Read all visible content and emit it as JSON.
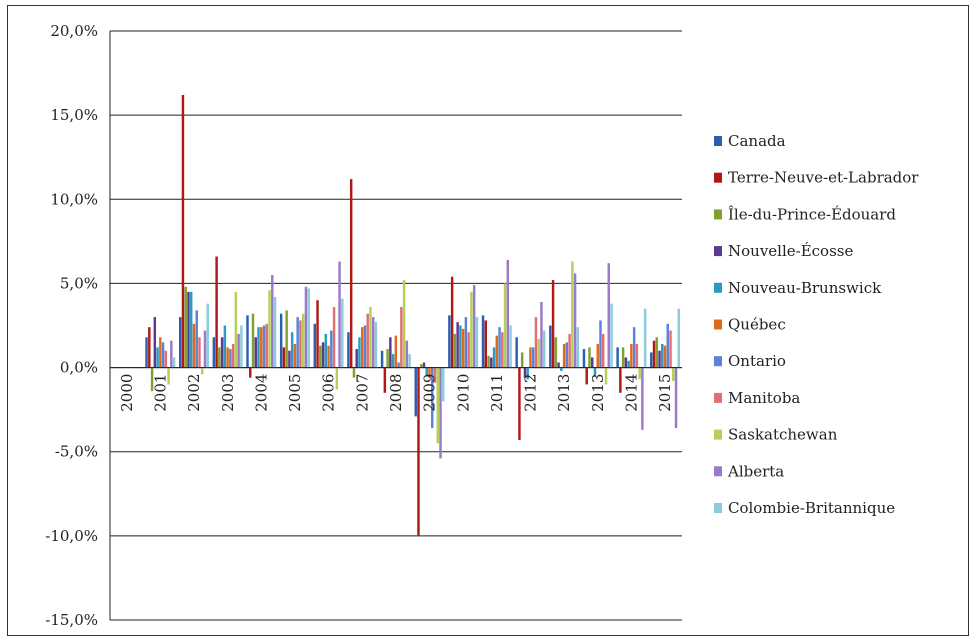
{
  "chart_data": {
    "type": "bar",
    "title": "",
    "xlabel": "",
    "ylabel": "",
    "ylim": [
      -15,
      20
    ],
    "yticks": [
      20,
      15,
      10,
      5,
      0,
      -5,
      -10,
      -15
    ],
    "ytick_labels": [
      "20,0%",
      "15,0%",
      "10,0%",
      "5,0%",
      "0,0%",
      "-5,0%",
      "-10,0%",
      "-15,0%"
    ],
    "grid": "horizontal",
    "legend_position": "right",
    "categories": [
      "2000",
      "2001",
      "2002",
      "2003",
      "2004",
      "2005",
      "2006",
      "2007",
      "2008",
      "2009",
      "2010",
      "2011",
      "2012",
      "2013",
      "2013",
      "2014",
      "2015"
    ],
    "series": [
      {
        "name": "Canada",
        "color": "#2a5fb0",
        "values": [
          null,
          1.8,
          3.0,
          1.8,
          3.1,
          3.2,
          2.6,
          2.1,
          1.0,
          -2.9,
          3.1,
          3.1,
          1.8,
          2.5,
          1.1,
          1.2,
          0.9
        ]
      },
      {
        "name": "Terre-Neuve-et-Labrador",
        "color": "#b01818",
        "values": [
          null,
          2.4,
          16.2,
          6.6,
          -0.6,
          1.2,
          4.0,
          11.2,
          -1.5,
          -10.0,
          5.4,
          2.8,
          -4.3,
          5.2,
          -1.0,
          -1.5,
          1.6
        ]
      },
      {
        "name": "Île-du-Prince-Édouard",
        "color": "#80a030",
        "values": [
          null,
          -1.4,
          4.8,
          1.2,
          3.2,
          3.4,
          1.3,
          -0.6,
          1.1,
          0.2,
          2.0,
          0.7,
          0.9,
          1.8,
          1.2,
          1.2,
          1.8
        ]
      },
      {
        "name": "Nouvelle-Écosse",
        "color": "#5a3a90",
        "values": [
          null,
          3.0,
          4.5,
          1.8,
          1.8,
          1.0,
          1.5,
          1.1,
          1.8,
          0.3,
          2.7,
          0.6,
          -0.6,
          0.3,
          0.6,
          0.6,
          1.0
        ]
      },
      {
        "name": "Nouveau-Brunswick",
        "color": "#2a9ac0",
        "values": [
          null,
          1.2,
          4.5,
          2.5,
          2.4,
          2.1,
          2.0,
          1.8,
          0.8,
          -0.5,
          2.5,
          1.2,
          -0.7,
          -0.2,
          -0.5,
          0.4,
          1.4
        ]
      },
      {
        "name": "Québec",
        "color": "#e06a1a",
        "values": [
          null,
          1.8,
          2.6,
          1.2,
          2.4,
          1.4,
          1.3,
          2.4,
          1.9,
          -0.6,
          2.3,
          1.9,
          1.2,
          1.4,
          1.4,
          1.4,
          1.3
        ]
      },
      {
        "name": "Ontario",
        "color": "#5a82d8",
        "values": [
          null,
          1.5,
          3.4,
          1.1,
          2.5,
          3.0,
          2.2,
          2.5,
          0.3,
          -3.6,
          3.0,
          2.4,
          1.2,
          1.5,
          2.8,
          2.4,
          2.6
        ]
      },
      {
        "name": "Manitoba",
        "color": "#e07070",
        "values": [
          null,
          1.0,
          1.8,
          1.4,
          2.6,
          2.8,
          3.6,
          3.2,
          3.6,
          -0.9,
          2.1,
          2.1,
          3.0,
          2.0,
          2.0,
          1.4,
          2.2
        ]
      },
      {
        "name": "Saskatchewan",
        "color": "#b4d058",
        "values": [
          null,
          -1.0,
          -0.4,
          4.5,
          4.6,
          3.2,
          -1.3,
          3.6,
          5.2,
          -4.5,
          4.5,
          5.0,
          1.7,
          6.3,
          -1.0,
          -0.7,
          -0.8
        ]
      },
      {
        "name": "Alberta",
        "color": "#9a7ac8",
        "values": [
          null,
          1.6,
          2.2,
          2.0,
          5.5,
          4.8,
          6.3,
          3.0,
          1.6,
          -5.4,
          4.9,
          6.4,
          3.9,
          5.6,
          6.2,
          -3.7,
          -3.6
        ]
      },
      {
        "name": "Colombie-Britannique",
        "color": "#8accdc",
        "values": [
          null,
          0.6,
          3.8,
          2.5,
          4.2,
          4.7,
          4.1,
          2.7,
          0.8,
          -2.0,
          3.0,
          2.5,
          2.2,
          2.4,
          3.8,
          3.5,
          3.5
        ]
      }
    ]
  }
}
